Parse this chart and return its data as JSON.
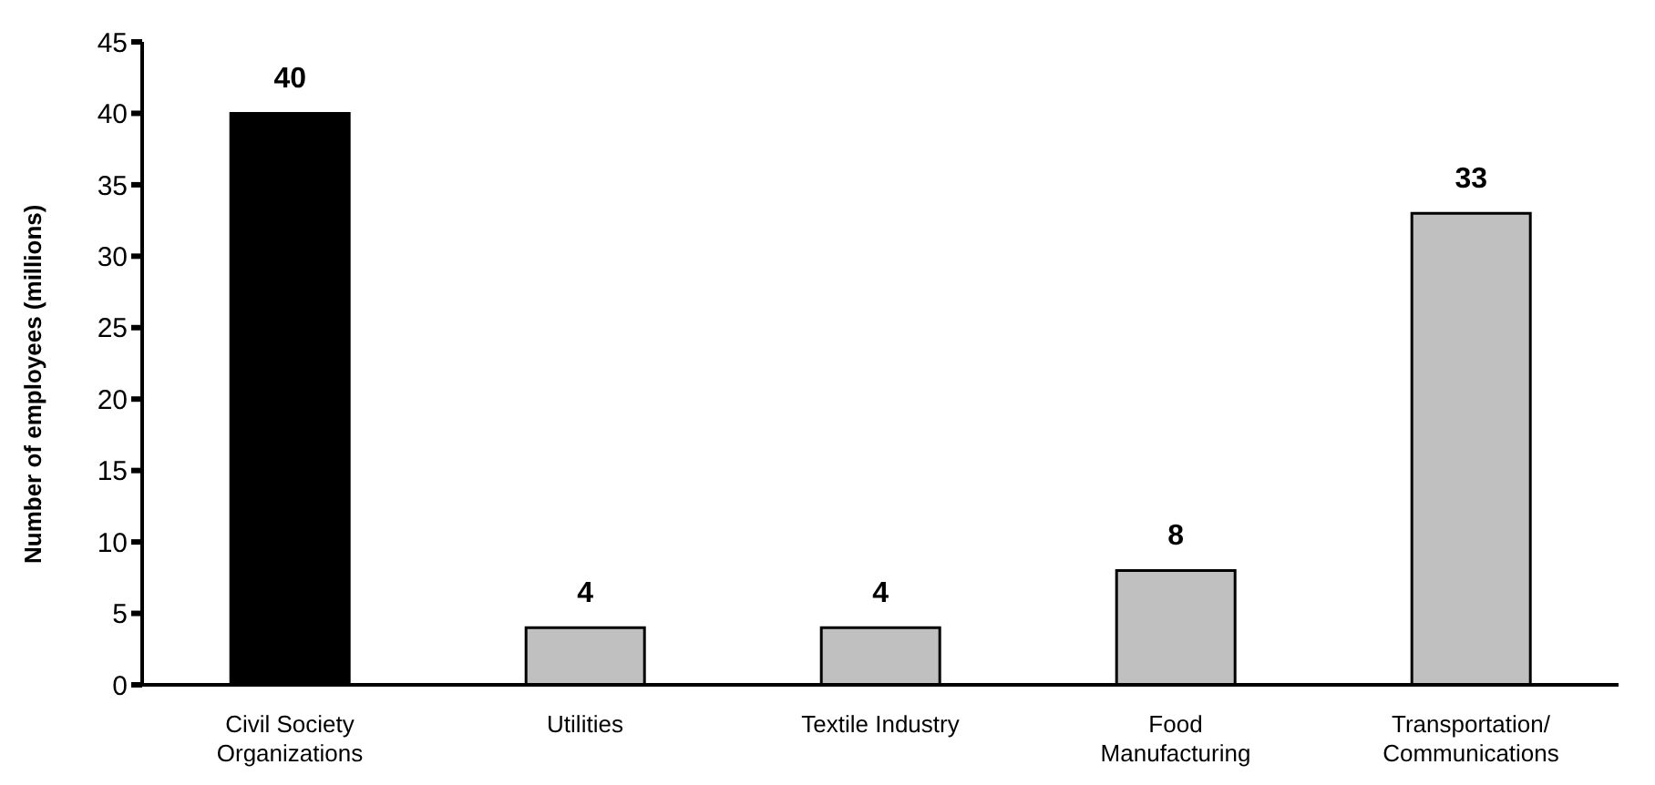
{
  "chart_data": {
    "type": "bar",
    "ylabel": "Number of employees (millions)",
    "categories": [
      "Civil Society Organizations",
      "Utilities",
      "Textile Industry",
      "Food Manufacturing",
      "Transportation/Communications"
    ],
    "values": [
      40,
      4,
      4,
      8,
      33
    ],
    "colors": [
      "#000000",
      "#c0c0c0",
      "#c0c0c0",
      "#c0c0c0",
      "#c0c0c0"
    ],
    "ylim": [
      0,
      45
    ],
    "yticks": [
      0,
      5,
      10,
      15,
      20,
      25,
      30,
      35,
      40,
      45
    ],
    "grid": false,
    "data_labels": true
  }
}
